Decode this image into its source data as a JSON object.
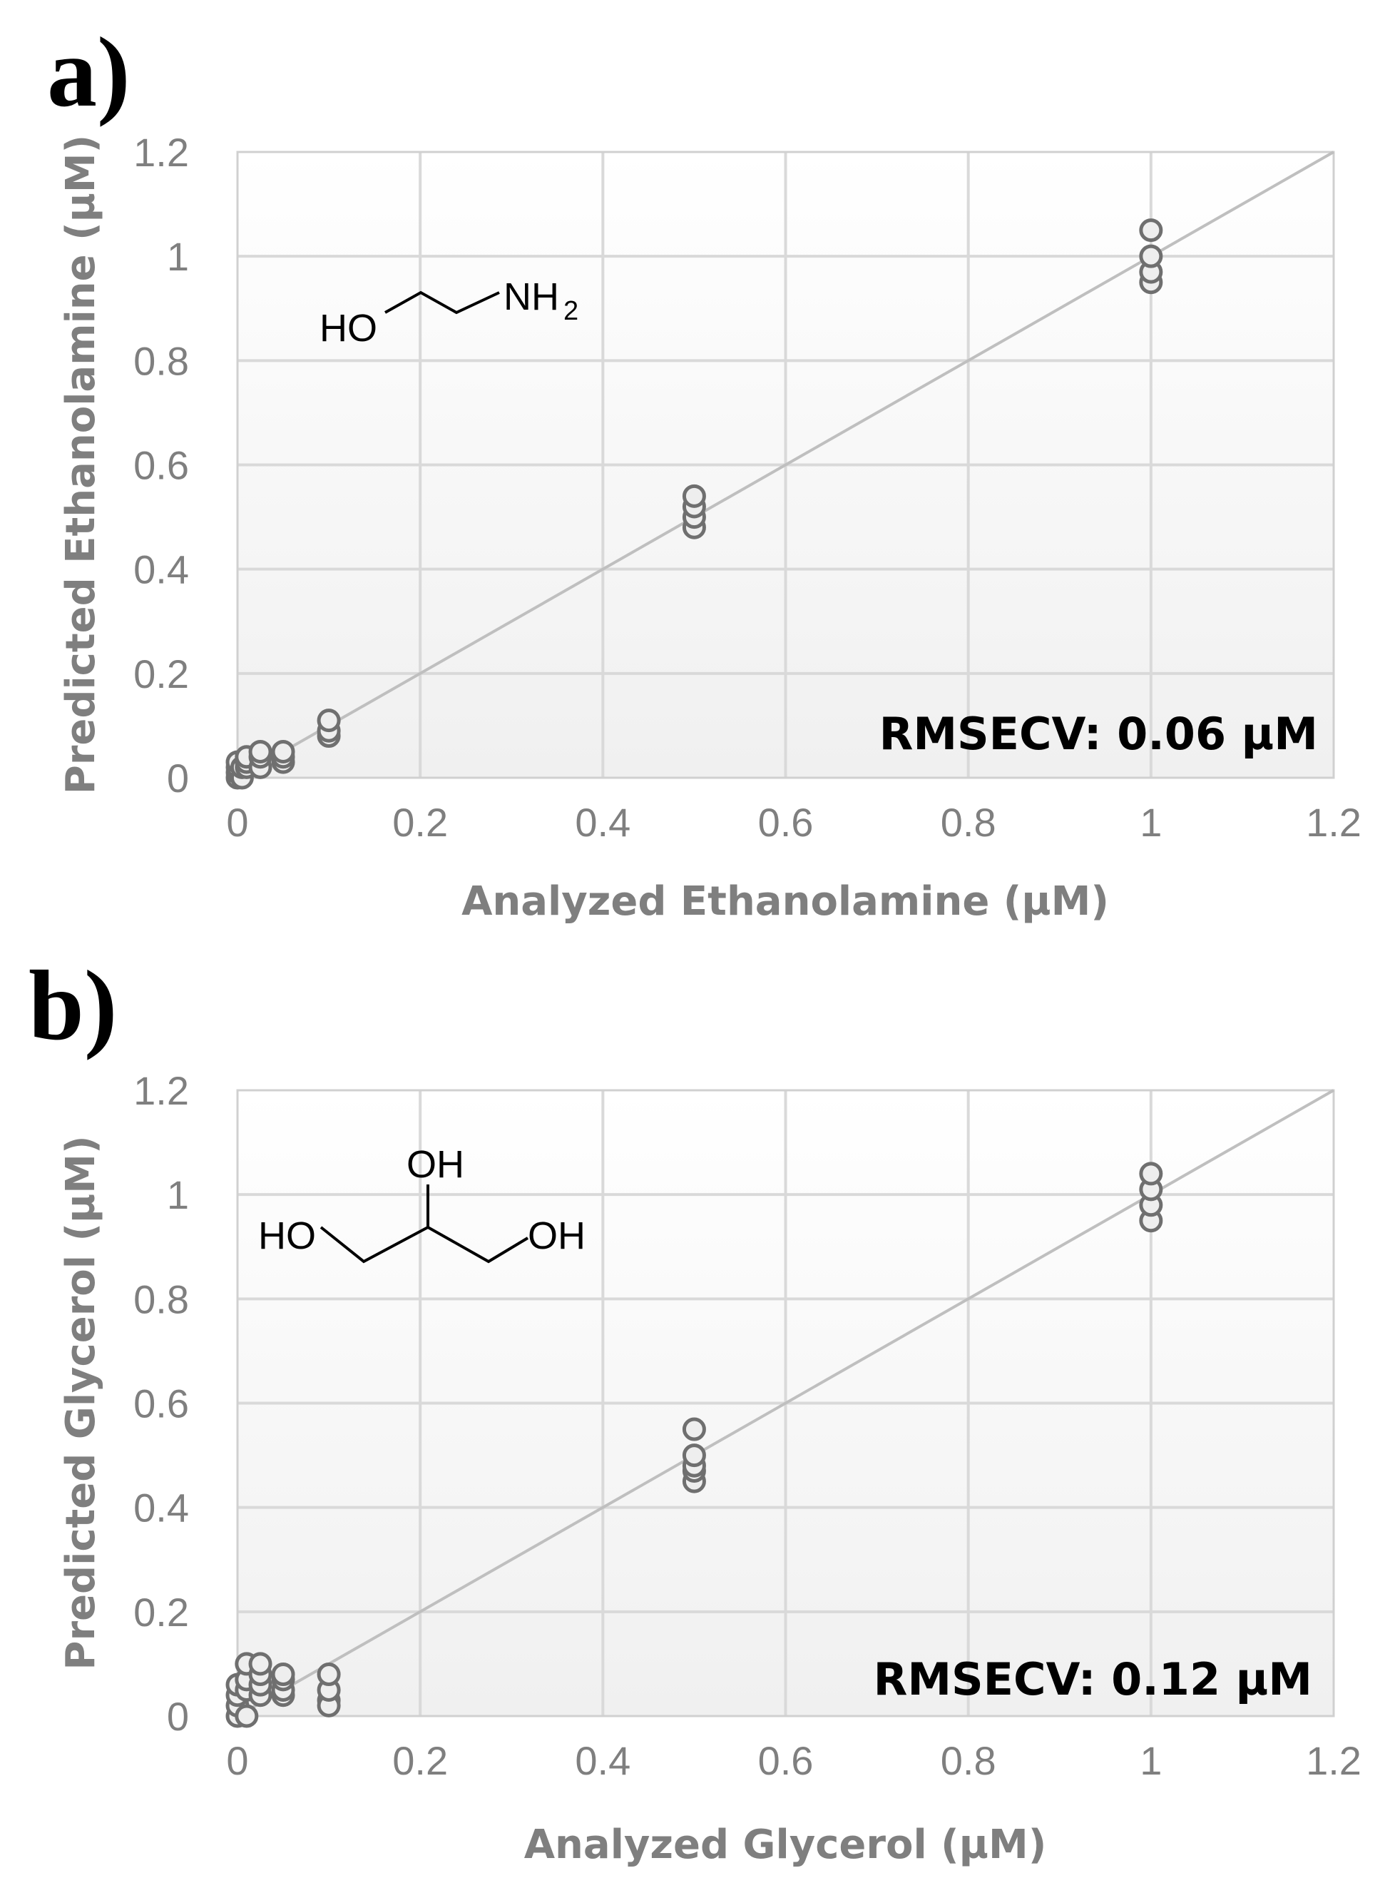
{
  "chart_data": [
    {
      "panel": "a)",
      "type": "scatter",
      "xlabel": "Analyzed Ethanolamine (µM)",
      "ylabel": "Predicted Ethanolamine (µM)",
      "xlim": [
        0,
        1.2
      ],
      "ylim": [
        0,
        1.2
      ],
      "xticks": [
        "0",
        "0.2",
        "0.4",
        "0.6",
        "0.8",
        "1",
        "1.2"
      ],
      "yticks": [
        "0",
        "0.2",
        "0.4",
        "0.6",
        "0.8",
        "1",
        "1.2"
      ],
      "annotation": "RMSECV:  0.06 µM",
      "molecule": {
        "name": "ethanolamine",
        "labels": [
          "HO",
          "NH",
          "2"
        ]
      },
      "reference_line": {
        "from": [
          0,
          0
        ],
        "to": [
          1.2,
          1.2
        ]
      },
      "points": {
        "x": [
          0,
          0,
          0,
          0,
          0.005,
          0.005,
          0.01,
          0.01,
          0.01,
          0.025,
          0.025,
          0.025,
          0.05,
          0.05,
          0.05,
          0.1,
          0.1,
          0.1,
          0.5,
          0.5,
          0.5,
          0.5,
          1.0,
          1.0,
          1.0,
          1.0
        ],
        "y": [
          0.0,
          0.01,
          0.02,
          0.03,
          0.0,
          0.02,
          0.02,
          0.03,
          0.04,
          0.02,
          0.04,
          0.05,
          0.03,
          0.04,
          0.05,
          0.08,
          0.09,
          0.11,
          0.48,
          0.5,
          0.52,
          0.54,
          0.95,
          0.97,
          1.0,
          1.05
        ]
      }
    },
    {
      "panel": "b)",
      "type": "scatter",
      "xlabel": "Analyzed Glycerol (µM)",
      "ylabel": "Predicted Glycerol (µM)",
      "xlim": [
        0,
        1.2
      ],
      "ylim": [
        0,
        1.2
      ],
      "xticks": [
        "0",
        "0.2",
        "0.4",
        "0.6",
        "0.8",
        "1",
        "1.2"
      ],
      "yticks": [
        "0",
        "0.2",
        "0.4",
        "0.6",
        "0.8",
        "1",
        "1.2"
      ],
      "annotation": "RMSECV:  0.12 µM",
      "molecule": {
        "name": "glycerol",
        "labels": [
          "OH",
          "HO",
          "OH"
        ]
      },
      "reference_line": {
        "from": [
          0,
          0
        ],
        "to": [
          1.2,
          1.2
        ]
      },
      "points": {
        "x": [
          0,
          0,
          0,
          0,
          0.01,
          0.01,
          0.01,
          0.01,
          0.025,
          0.025,
          0.025,
          0.025,
          0.05,
          0.05,
          0.05,
          0.05,
          0.1,
          0.1,
          0.1,
          0.1,
          0.5,
          0.5,
          0.5,
          0.5,
          0.5,
          1.0,
          1.0,
          1.0,
          1.0
        ],
        "y": [
          0.0,
          0.02,
          0.04,
          0.06,
          0.0,
          0.05,
          0.07,
          0.1,
          0.04,
          0.06,
          0.08,
          0.1,
          0.04,
          0.05,
          0.07,
          0.08,
          0.03,
          0.02,
          0.05,
          0.08,
          0.45,
          0.47,
          0.48,
          0.5,
          0.55,
          0.95,
          0.98,
          1.01,
          1.04
        ]
      }
    }
  ]
}
